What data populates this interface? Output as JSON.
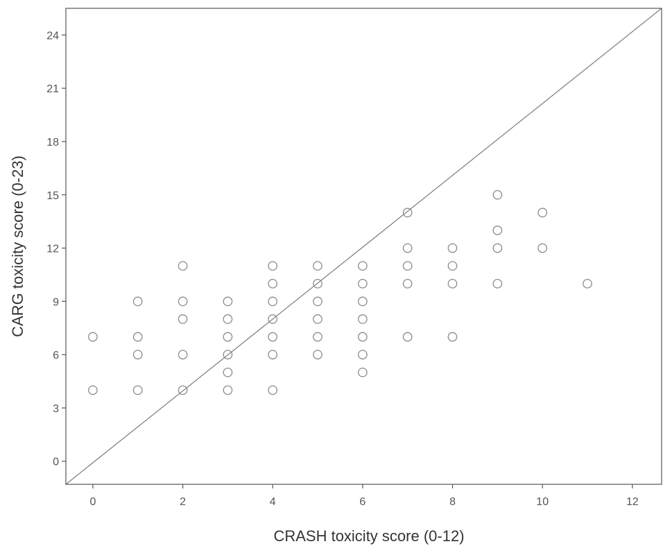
{
  "chart_data": {
    "type": "scatter",
    "title": "",
    "xlabel": "CRASH toxicity score (0-12)",
    "ylabel": "CARG  toxicity score (0-23)",
    "xlim": [
      -0.6,
      12.65
    ],
    "ylim": [
      -1.3,
      25.5
    ],
    "xticks": [
      0,
      2,
      4,
      6,
      8,
      10,
      12
    ],
    "yticks": [
      0,
      3,
      6,
      9,
      12,
      15,
      18,
      21,
      24
    ],
    "grid": false,
    "reference_line": {
      "from": [
        -0.6,
        -1.3
      ],
      "to": [
        12.65,
        25.5
      ]
    },
    "marker_color": "#8a8a8a",
    "line_color": "#7a7a7a",
    "points": [
      {
        "x": 0,
        "y": 7
      },
      {
        "x": 0,
        "y": 4
      },
      {
        "x": 1,
        "y": 9
      },
      {
        "x": 1,
        "y": 7
      },
      {
        "x": 1,
        "y": 6
      },
      {
        "x": 1,
        "y": 4
      },
      {
        "x": 2,
        "y": 11
      },
      {
        "x": 2,
        "y": 9
      },
      {
        "x": 2,
        "y": 8
      },
      {
        "x": 2,
        "y": 6
      },
      {
        "x": 2,
        "y": 4
      },
      {
        "x": 3,
        "y": 9
      },
      {
        "x": 3,
        "y": 8
      },
      {
        "x": 3,
        "y": 7
      },
      {
        "x": 3,
        "y": 6
      },
      {
        "x": 3,
        "y": 5
      },
      {
        "x": 3,
        "y": 4
      },
      {
        "x": 4,
        "y": 11
      },
      {
        "x": 4,
        "y": 10
      },
      {
        "x": 4,
        "y": 9
      },
      {
        "x": 4,
        "y": 8
      },
      {
        "x": 4,
        "y": 7
      },
      {
        "x": 4,
        "y": 6
      },
      {
        "x": 4,
        "y": 4
      },
      {
        "x": 5,
        "y": 11
      },
      {
        "x": 5,
        "y": 10
      },
      {
        "x": 5,
        "y": 9
      },
      {
        "x": 5,
        "y": 8
      },
      {
        "x": 5,
        "y": 7
      },
      {
        "x": 5,
        "y": 6
      },
      {
        "x": 6,
        "y": 11
      },
      {
        "x": 6,
        "y": 10
      },
      {
        "x": 6,
        "y": 9
      },
      {
        "x": 6,
        "y": 8
      },
      {
        "x": 6,
        "y": 7
      },
      {
        "x": 6,
        "y": 6
      },
      {
        "x": 6,
        "y": 5
      },
      {
        "x": 7,
        "y": 14
      },
      {
        "x": 7,
        "y": 12
      },
      {
        "x": 7,
        "y": 11
      },
      {
        "x": 7,
        "y": 10
      },
      {
        "x": 7,
        "y": 7
      },
      {
        "x": 8,
        "y": 12
      },
      {
        "x": 8,
        "y": 11
      },
      {
        "x": 8,
        "y": 10
      },
      {
        "x": 8,
        "y": 7
      },
      {
        "x": 9,
        "y": 15
      },
      {
        "x": 9,
        "y": 13
      },
      {
        "x": 9,
        "y": 12
      },
      {
        "x": 9,
        "y": 10
      },
      {
        "x": 10,
        "y": 14
      },
      {
        "x": 10,
        "y": 12
      },
      {
        "x": 11,
        "y": 10
      }
    ]
  }
}
